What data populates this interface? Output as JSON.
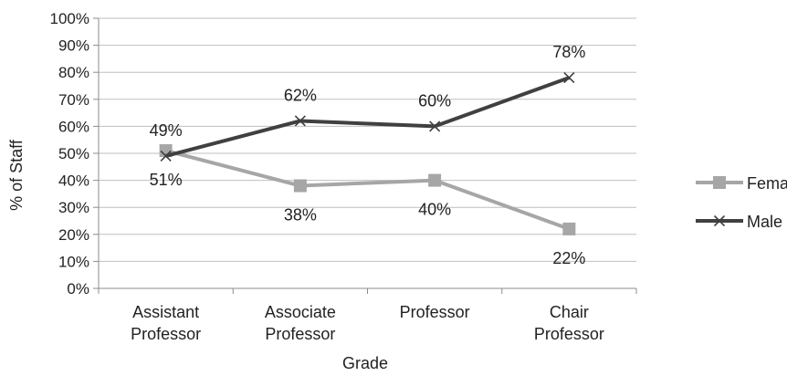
{
  "chart_data": {
    "type": "line",
    "categories": [
      [
        "Assistant",
        "Professor"
      ],
      [
        "Associate",
        "Professor"
      ],
      [
        "Professor"
      ],
      [
        "Chair",
        "Professor"
      ]
    ],
    "xlabel": "Grade",
    "ylabel": "% of Staff",
    "ylim": [
      0,
      100
    ],
    "y_ticks": [
      "0%",
      "10%",
      "20%",
      "30%",
      "40%",
      "50%",
      "60%",
      "70%",
      "80%",
      "90%",
      "100%"
    ],
    "grid": "horizontal",
    "legend_position": "right",
    "series": [
      {
        "name": "Female",
        "values": [
          51,
          38,
          40,
          22
        ],
        "labels": [
          "51%",
          "38%",
          "40%",
          "22%"
        ],
        "color": "#a6a6a6",
        "marker": "square",
        "label_position": "below"
      },
      {
        "name": "Male",
        "values": [
          49,
          62,
          60,
          78
        ],
        "labels": [
          "49%",
          "62%",
          "60%",
          "78%"
        ],
        "color": "#404040",
        "marker": "x",
        "label_position": "above"
      }
    ]
  }
}
